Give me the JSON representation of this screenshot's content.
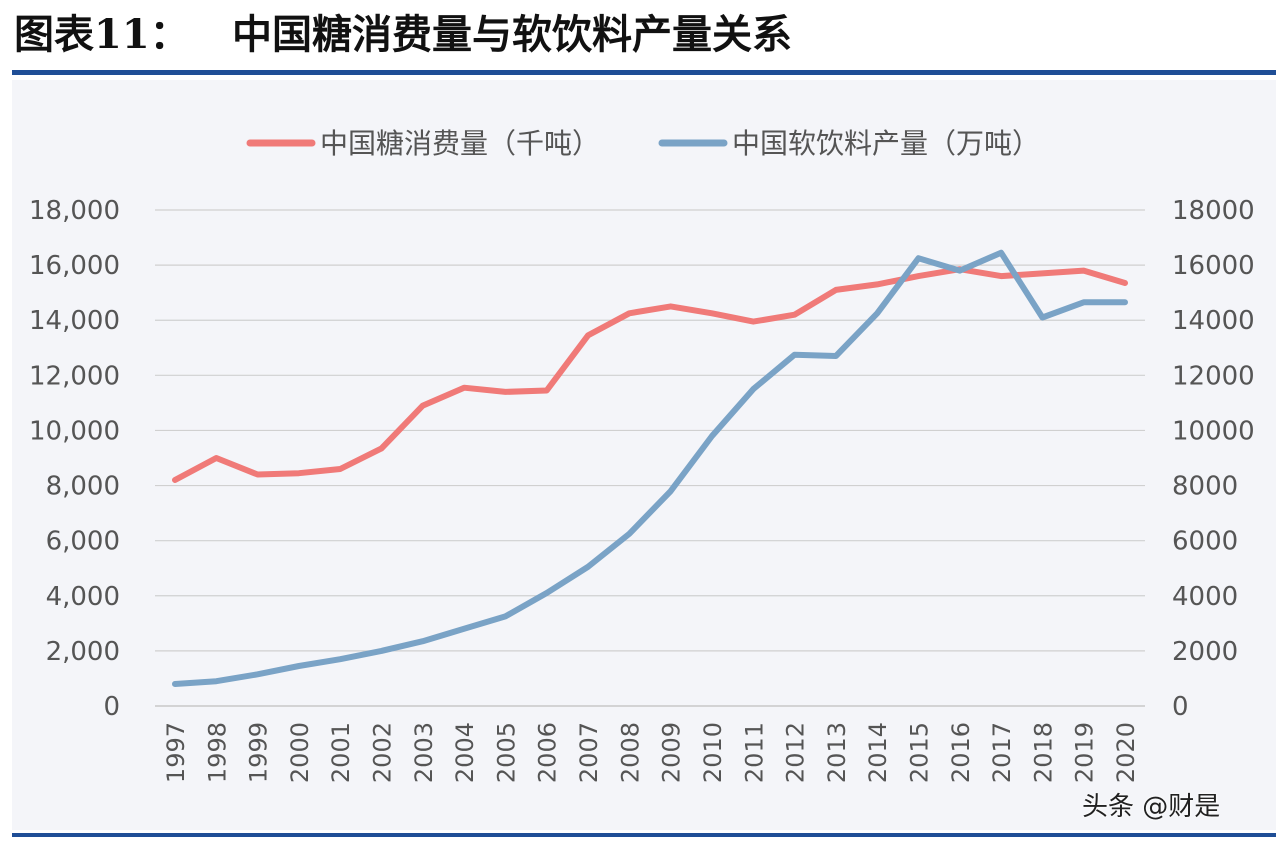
{
  "header": {
    "figure_label": "图表11：",
    "title": "中国糖消费量与软饮料产量关系"
  },
  "watermark": "头条 @财是",
  "chart_data": {
    "type": "line",
    "x": [
      "1997",
      "1998",
      "1999",
      "2000",
      "2001",
      "2002",
      "2003",
      "2004",
      "2005",
      "2006",
      "2007",
      "2008",
      "2009",
      "2010",
      "2011",
      "2012",
      "2013",
      "2014",
      "2015",
      "2016",
      "2017",
      "2018",
      "2019",
      "2020"
    ],
    "series": [
      {
        "name": "中国糖消费量（千吨）",
        "axis": "left",
        "color": "#f07a78",
        "values": [
          8200,
          9000,
          8400,
          8450,
          8600,
          9350,
          10900,
          11550,
          11400,
          11450,
          13450,
          14250,
          14500,
          14250,
          13950,
          14200,
          15100,
          15300,
          15600,
          15850,
          15600,
          15700,
          15800,
          15350
        ]
      },
      {
        "name": "中国软饮料产量（万吨）",
        "axis": "right",
        "color": "#7aa3c6",
        "values": [
          800,
          900,
          1150,
          1450,
          1700,
          2000,
          2350,
          2800,
          3250,
          4100,
          5050,
          6250,
          7800,
          9800,
          11500,
          12750,
          12700,
          14250,
          16250,
          15800,
          16450,
          14100,
          14650,
          14650
        ]
      }
    ],
    "y_left": {
      "range": [
        0,
        18000
      ],
      "ticks": [
        0,
        2000,
        4000,
        6000,
        8000,
        10000,
        12000,
        14000,
        16000,
        18000
      ],
      "tick_labels": [
        "0",
        "2,000",
        "4,000",
        "6,000",
        "8,000",
        "10,000",
        "12,000",
        "14,000",
        "16,000",
        "18,000"
      ]
    },
    "y_right": {
      "range": [
        0,
        18000
      ],
      "ticks": [
        0,
        2000,
        4000,
        6000,
        8000,
        10000,
        12000,
        14000,
        16000,
        18000
      ],
      "tick_labels": [
        "0",
        "2000",
        "4000",
        "6000",
        "8000",
        "10000",
        "12000",
        "14000",
        "16000",
        "18000"
      ]
    },
    "grid": true,
    "legend": "top-center",
    "x_tick_rotation": "vertical"
  }
}
